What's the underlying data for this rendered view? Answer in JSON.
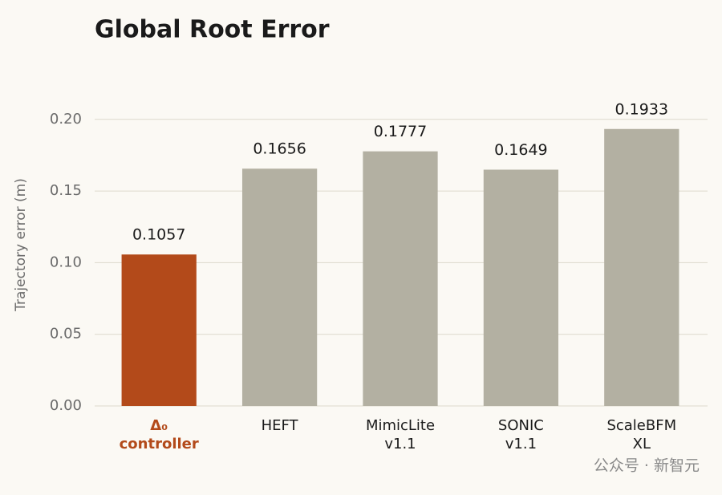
{
  "chart_data": {
    "type": "bar",
    "title": "Global Root Error",
    "categories": [
      "Δ₀\ncontroller",
      "HEFT",
      "MimicLite\nv1.1",
      "SONIC\nv1.1",
      "ScaleBFM\nXL"
    ],
    "values": [
      0.1057,
      0.1656,
      0.1777,
      0.1649,
      0.1933
    ],
    "colors": [
      "#b34a1a",
      "#b3b0a2",
      "#b3b0a2",
      "#b3b0a2",
      "#b3b0a2"
    ],
    "y_label": "Trajectory error (m)",
    "ylim": [
      0,
      0.215
    ],
    "yticks": [
      {
        "value": 0,
        "label": "0.00"
      },
      {
        "value": 0.05,
        "label": "0.05"
      },
      {
        "value": 0.1,
        "label": "0.10"
      },
      {
        "value": 0.15,
        "label": "0.15"
      },
      {
        "value": 0.2,
        "label": "0.20"
      }
    ],
    "grid": true,
    "watermark": "公众号 · 新智元"
  }
}
